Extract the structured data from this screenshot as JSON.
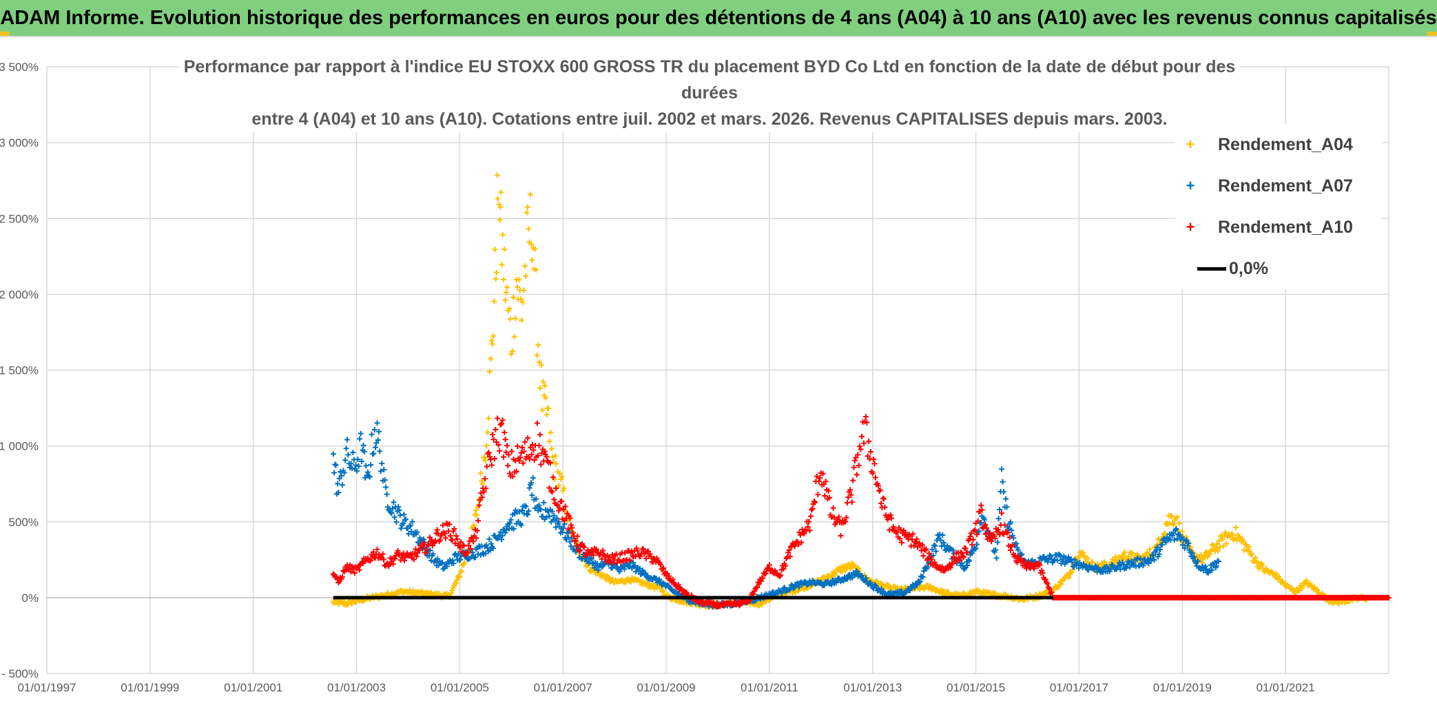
{
  "banner": {
    "title": "ADAM Informe. Evolution historique des performances en euros pour des détentions de 4 ans (A04) à 10 ans (A10) avec les revenus connus capitalisés"
  },
  "chart_data": {
    "type": "scatter",
    "title_line1": "Performance par rapport à l'indice EU STOXX 600 GROSS TR  du placement BYD Co Ltd en fonction de la date de début pour des durées",
    "title_line2": "entre 4 (A04) et 10 ans (A10). Cotations entre juil. 2002 et mars. 2026. Revenus CAPITALISES depuis mars. 2003.",
    "xlabel": "",
    "ylabel": "",
    "xlim": [
      1997.0,
      2023.0
    ],
    "ylim": [
      -500,
      3500
    ],
    "x_ticks": [
      "01/01/1997",
      "01/01/1999",
      "01/01/2001",
      "01/01/2003",
      "01/01/2005",
      "01/01/2007",
      "01/01/2009",
      "01/01/2011",
      "01/01/2013",
      "01/01/2015",
      "01/01/2017",
      "01/01/2019",
      "01/01/2021"
    ],
    "y_ticks": [
      "- 500%",
      "0%",
      "500%",
      "1 000%",
      "1 500%",
      "2 000%",
      "2 500%",
      "3 000%",
      "3 500%"
    ],
    "grid": true,
    "legend_position": "top-right",
    "legend": [
      "Rendement_A04",
      "Rendement_A07",
      "Rendement_A10",
      "0,0%"
    ],
    "series": [
      {
        "name": "Rendement_A04",
        "color": "#ffc000",
        "marker": "+",
        "points": [
          [
            2002.55,
            -30
          ],
          [
            2002.8,
            -40
          ],
          [
            2003.0,
            -20
          ],
          [
            2003.3,
            0
          ],
          [
            2003.6,
            20
          ],
          [
            2003.9,
            40
          ],
          [
            2004.2,
            30
          ],
          [
            2004.5,
            20
          ],
          [
            2004.8,
            10
          ],
          [
            2005.0,
            150
          ],
          [
            2005.2,
            350
          ],
          [
            2005.35,
            600
          ],
          [
            2005.5,
            1000
          ],
          [
            2005.6,
            1500
          ],
          [
            2005.7,
            2200
          ],
          [
            2005.75,
            2900
          ],
          [
            2005.8,
            2400
          ],
          [
            2005.9,
            2000
          ],
          [
            2006.0,
            1700
          ],
          [
            2006.1,
            2100
          ],
          [
            2006.2,
            1900
          ],
          [
            2006.3,
            2300
          ],
          [
            2006.4,
            2500
          ],
          [
            2006.5,
            1800
          ],
          [
            2006.6,
            1300
          ],
          [
            2006.7,
            1200
          ],
          [
            2006.8,
            900
          ],
          [
            2006.9,
            800
          ],
          [
            2007.0,
            700
          ],
          [
            2007.1,
            500
          ],
          [
            2007.25,
            350
          ],
          [
            2007.5,
            200
          ],
          [
            2007.75,
            150
          ],
          [
            2008.0,
            100
          ],
          [
            2008.3,
            120
          ],
          [
            2008.6,
            90
          ],
          [
            2008.9,
            60
          ],
          [
            2009.0,
            10
          ],
          [
            2009.3,
            -20
          ],
          [
            2009.6,
            -40
          ],
          [
            2009.9,
            -50
          ],
          [
            2010.2,
            -40
          ],
          [
            2010.5,
            -30
          ],
          [
            2010.8,
            -40
          ],
          [
            2011.1,
            10
          ],
          [
            2011.3,
            30
          ],
          [
            2011.6,
            60
          ],
          [
            2011.9,
            100
          ],
          [
            2012.2,
            150
          ],
          [
            2012.4,
            190
          ],
          [
            2012.6,
            210
          ],
          [
            2012.9,
            120
          ],
          [
            2013.2,
            80
          ],
          [
            2013.5,
            50
          ],
          [
            2013.8,
            60
          ],
          [
            2014.1,
            70
          ],
          [
            2014.4,
            30
          ],
          [
            2014.7,
            10
          ],
          [
            2015.0,
            40
          ],
          [
            2015.3,
            20
          ],
          [
            2015.6,
            10
          ],
          [
            2015.9,
            -10
          ],
          [
            2016.2,
            10
          ],
          [
            2016.5,
            50
          ],
          [
            2016.8,
            150
          ],
          [
            2017.0,
            300
          ],
          [
            2017.3,
            200
          ],
          [
            2017.6,
            220
          ],
          [
            2017.9,
            280
          ],
          [
            2018.2,
            250
          ],
          [
            2018.5,
            320
          ],
          [
            2018.7,
            500
          ],
          [
            2018.85,
            540
          ],
          [
            2019.0,
            400
          ],
          [
            2019.2,
            280
          ],
          [
            2019.4,
            250
          ],
          [
            2019.6,
            320
          ],
          [
            2019.8,
            380
          ],
          [
            2020.0,
            430
          ],
          [
            2020.2,
            350
          ],
          [
            2020.4,
            250
          ],
          [
            2020.6,
            180
          ],
          [
            2020.8,
            150
          ],
          [
            2021.0,
            80
          ],
          [
            2021.2,
            40
          ],
          [
            2021.4,
            100
          ],
          [
            2021.6,
            50
          ],
          [
            2021.8,
            -10
          ],
          [
            2022.0,
            -30
          ],
          [
            2022.3,
            -10
          ],
          [
            2022.6,
            0
          ]
        ]
      },
      {
        "name": "Rendement_A07",
        "color": "#0070c0",
        "marker": "+",
        "points": [
          [
            2002.55,
            900
          ],
          [
            2002.65,
            700
          ],
          [
            2002.8,
            950
          ],
          [
            2002.95,
            850
          ],
          [
            2003.1,
            1000
          ],
          [
            2003.2,
            750
          ],
          [
            2003.35,
            1100
          ],
          [
            2003.45,
            1000
          ],
          [
            2003.55,
            700
          ],
          [
            2003.7,
            600
          ],
          [
            2003.9,
            500
          ],
          [
            2004.1,
            450
          ],
          [
            2004.3,
            350
          ],
          [
            2004.5,
            250
          ],
          [
            2004.7,
            200
          ],
          [
            2004.9,
            260
          ],
          [
            2005.1,
            280
          ],
          [
            2005.3,
            300
          ],
          [
            2005.5,
            330
          ],
          [
            2005.7,
            380
          ],
          [
            2005.9,
            480
          ],
          [
            2006.1,
            520
          ],
          [
            2006.3,
            560
          ],
          [
            2006.4,
            750
          ],
          [
            2006.5,
            540
          ],
          [
            2006.7,
            580
          ],
          [
            2006.9,
            500
          ],
          [
            2007.1,
            400
          ],
          [
            2007.3,
            300
          ],
          [
            2007.5,
            250
          ],
          [
            2007.7,
            200
          ],
          [
            2007.9,
            230
          ],
          [
            2008.1,
            180
          ],
          [
            2008.3,
            220
          ],
          [
            2008.6,
            150
          ],
          [
            2008.9,
            100
          ],
          [
            2009.1,
            50
          ],
          [
            2009.4,
            -10
          ],
          [
            2009.7,
            -40
          ],
          [
            2010.0,
            -50
          ],
          [
            2010.3,
            -40
          ],
          [
            2010.6,
            -20
          ],
          [
            2010.9,
            10
          ],
          [
            2011.2,
            40
          ],
          [
            2011.5,
            80
          ],
          [
            2011.8,
            100
          ],
          [
            2012.1,
            90
          ],
          [
            2012.4,
            120
          ],
          [
            2012.7,
            160
          ],
          [
            2013.0,
            80
          ],
          [
            2013.3,
            20
          ],
          [
            2013.6,
            30
          ],
          [
            2013.9,
            100
          ],
          [
            2014.1,
            250
          ],
          [
            2014.3,
            400
          ],
          [
            2014.5,
            300
          ],
          [
            2014.8,
            200
          ],
          [
            2015.0,
            350
          ],
          [
            2015.1,
            550
          ],
          [
            2015.2,
            480
          ],
          [
            2015.4,
            280
          ],
          [
            2015.5,
            760
          ],
          [
            2015.6,
            550
          ],
          [
            2015.8,
            300
          ],
          [
            2016.0,
            220
          ],
          [
            2016.3,
            250
          ],
          [
            2016.6,
            260
          ],
          [
            2016.9,
            230
          ],
          [
            2017.2,
            200
          ],
          [
            2017.5,
            180
          ],
          [
            2017.8,
            210
          ],
          [
            2018.1,
            230
          ],
          [
            2018.4,
            250
          ],
          [
            2018.7,
            380
          ],
          [
            2018.9,
            420
          ],
          [
            2019.1,
            350
          ],
          [
            2019.3,
            220
          ],
          [
            2019.5,
            180
          ],
          [
            2019.7,
            240
          ]
        ]
      },
      {
        "name": "Rendement_A10",
        "color": "#ff0000",
        "marker": "+",
        "points": [
          [
            2002.55,
            160
          ],
          [
            2002.65,
            100
          ],
          [
            2002.8,
            200
          ],
          [
            2003.0,
            180
          ],
          [
            2003.2,
            250
          ],
          [
            2003.4,
            300
          ],
          [
            2003.6,
            220
          ],
          [
            2003.8,
            280
          ],
          [
            2004.0,
            260
          ],
          [
            2004.2,
            300
          ],
          [
            2004.4,
            350
          ],
          [
            2004.6,
            420
          ],
          [
            2004.8,
            450
          ],
          [
            2004.95,
            380
          ],
          [
            2005.1,
            300
          ],
          [
            2005.3,
            400
          ],
          [
            2005.45,
            700
          ],
          [
            2005.6,
            950
          ],
          [
            2005.75,
            1100
          ],
          [
            2005.85,
            1050
          ],
          [
            2005.95,
            850
          ],
          [
            2006.1,
            900
          ],
          [
            2006.3,
            950
          ],
          [
            2006.5,
            1050
          ],
          [
            2006.7,
            850
          ],
          [
            2006.9,
            650
          ],
          [
            2007.1,
            500
          ],
          [
            2007.3,
            350
          ],
          [
            2007.5,
            280
          ],
          [
            2007.7,
            300
          ],
          [
            2007.9,
            250
          ],
          [
            2008.2,
            270
          ],
          [
            2008.5,
            300
          ],
          [
            2008.8,
            250
          ],
          [
            2009.0,
            150
          ],
          [
            2009.2,
            80
          ],
          [
            2009.4,
            20
          ],
          [
            2009.6,
            -20
          ],
          [
            2009.8,
            -40
          ],
          [
            2010.1,
            -50
          ],
          [
            2010.4,
            -40
          ],
          [
            2010.6,
            -20
          ],
          [
            2010.8,
            100
          ],
          [
            2011.0,
            200
          ],
          [
            2011.2,
            150
          ],
          [
            2011.4,
            300
          ],
          [
            2011.6,
            400
          ],
          [
            2011.8,
            500
          ],
          [
            2011.9,
            700
          ],
          [
            2012.0,
            850
          ],
          [
            2012.2,
            550
          ],
          [
            2012.4,
            450
          ],
          [
            2012.6,
            700
          ],
          [
            2012.75,
            1000
          ],
          [
            2012.85,
            1100
          ],
          [
            2013.0,
            900
          ],
          [
            2013.2,
            600
          ],
          [
            2013.4,
            450
          ],
          [
            2013.6,
            400
          ],
          [
            2013.8,
            380
          ],
          [
            2014.0,
            300
          ],
          [
            2014.2,
            220
          ],
          [
            2014.4,
            180
          ],
          [
            2014.6,
            260
          ],
          [
            2014.8,
            300
          ],
          [
            2015.0,
            450
          ],
          [
            2015.1,
            550
          ],
          [
            2015.3,
            350
          ],
          [
            2015.5,
            500
          ],
          [
            2015.6,
            400
          ],
          [
            2015.8,
            250
          ],
          [
            2016.0,
            200
          ],
          [
            2016.2,
            220
          ],
          [
            2016.5,
            0
          ],
          [
            2017.0,
            0
          ],
          [
            2017.5,
            0
          ],
          [
            2018.0,
            0
          ],
          [
            2018.5,
            0
          ],
          [
            2019.0,
            0
          ],
          [
            2019.5,
            0
          ],
          [
            2020.0,
            0
          ],
          [
            2020.5,
            0
          ],
          [
            2021.0,
            0
          ],
          [
            2021.5,
            0
          ],
          [
            2022.0,
            0
          ],
          [
            2022.5,
            0
          ],
          [
            2023.0,
            0
          ]
        ]
      },
      {
        "name": "0,0%",
        "color": "#000000",
        "marker": "line",
        "points": [
          [
            2002.55,
            0
          ],
          [
            2016.5,
            0
          ]
        ]
      }
    ]
  }
}
